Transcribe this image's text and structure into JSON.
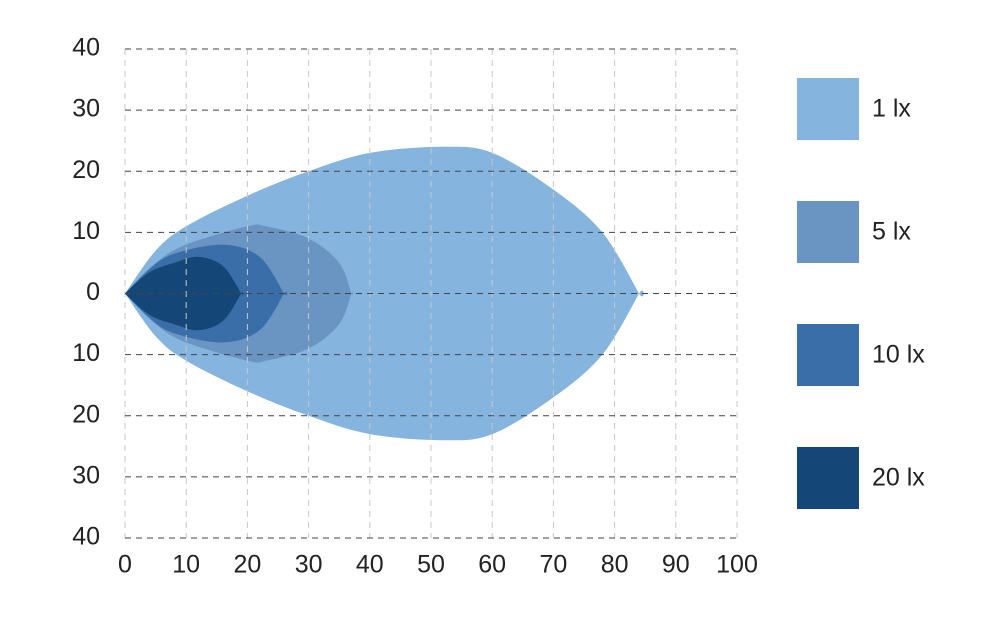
{
  "chart_data": {
    "type": "area",
    "xlim": [
      0,
      100
    ],
    "xticks": [
      0,
      10,
      20,
      30,
      40,
      50,
      60,
      70,
      80,
      90,
      100
    ],
    "ylim": [
      -40,
      40
    ],
    "yticks": [
      40,
      30,
      20,
      10,
      0,
      {
        "value": -10,
        "label": "10"
      },
      {
        "value": -20,
        "label": "20"
      },
      {
        "value": -30,
        "label": "30"
      },
      {
        "value": -40,
        "label": "40"
      }
    ],
    "grid": true,
    "legend": "right",
    "series": [
      {
        "name": "1 lx",
        "color": "#85b4df",
        "x": [
          0,
          5,
          10,
          20,
          30,
          40,
          52,
          60,
          70,
          78,
          84
        ],
        "upper": [
          0,
          7,
          11,
          16,
          20,
          23,
          24,
          23,
          17,
          10,
          0
        ],
        "lower": [
          0,
          -7,
          -11,
          -16,
          -20,
          -23,
          -24,
          -23,
          -17,
          -10,
          0
        ]
      },
      {
        "name": "5 lx",
        "color": "#6a94c2",
        "x": [
          0,
          5,
          10,
          20,
          23,
          30,
          35,
          37
        ],
        "upper": [
          0,
          5,
          8,
          11,
          11,
          9,
          5,
          0
        ],
        "lower": [
          0,
          -5,
          -8,
          -11,
          -11,
          -9,
          -5,
          0
        ]
      },
      {
        "name": "10 lx",
        "color": "#3a6ea8",
        "x": [
          0,
          4,
          8,
          16,
          22,
          26
        ],
        "upper": [
          0,
          4,
          6.5,
          8,
          6,
          0
        ],
        "lower": [
          0,
          -4,
          -6.5,
          -8,
          -6,
          0
        ]
      },
      {
        "name": "20 lx",
        "color": "#144677",
        "x": [
          0,
          4,
          8,
          12,
          16,
          19
        ],
        "upper": [
          0,
          3.5,
          5,
          6,
          4.5,
          0
        ],
        "lower": [
          0,
          -3.5,
          -5,
          -6,
          -4.5,
          0
        ]
      }
    ]
  }
}
